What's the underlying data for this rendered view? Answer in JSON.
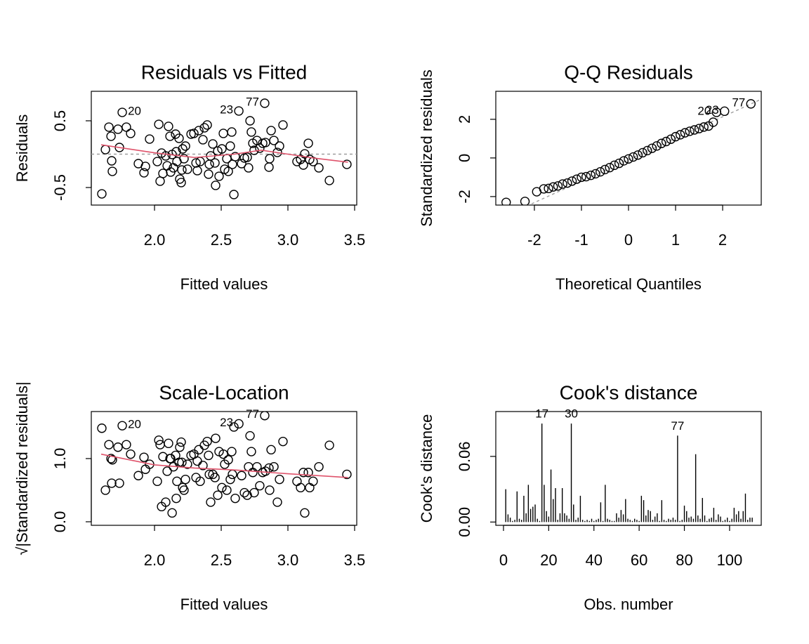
{
  "chart_data": [
    {
      "type": "scatter",
      "title": "Residuals vs Fitted",
      "xlabel": "Fitted values",
      "ylabel": "Residuals",
      "xlim": [
        1.526,
        3.516
      ],
      "ylim": [
        -0.763,
        0.942
      ],
      "xticks": [
        {
          "value": 2,
          "label": "2.0"
        },
        2.5,
        {
          "value": 3,
          "label": "3.0"
        },
        3.5
      ],
      "yticks": [
        -0.5,
        0.5
      ],
      "x": [
        1.605,
        1.632,
        1.658,
        1.674,
        1.679,
        1.684,
        1.726,
        1.737,
        1.758,
        1.789,
        1.821,
        1.879,
        1.921,
        1.932,
        1.963,
        2.021,
        2.032,
        2.042,
        2.053,
        2.063,
        2.084,
        2.095,
        2.105,
        2.116,
        2.121,
        2.132,
        2.142,
        2.158,
        2.163,
        2.168,
        2.184,
        2.189,
        2.2,
        2.205,
        2.211,
        2.221,
        2.232,
        2.247,
        2.274,
        2.295,
        2.311,
        2.321,
        2.332,
        2.342,
        2.363,
        2.374,
        2.395,
        2.405,
        2.411,
        2.421,
        2.437,
        2.453,
        2.458,
        2.474,
        2.484,
        2.505,
        2.516,
        2.526,
        2.542,
        2.553,
        2.568,
        2.579,
        2.584,
        2.595,
        2.605,
        2.632,
        2.653,
        2.674,
        2.695,
        2.705,
        2.716,
        2.726,
        2.737,
        2.747,
        2.768,
        2.789,
        2.811,
        2.826,
        2.832,
        2.858,
        2.863,
        2.874,
        2.895,
        2.921,
        2.937,
        2.963,
        3.068,
        3.095,
        3.116,
        3.126,
        3.153,
        3.163,
        3.189,
        3.232,
        3.311,
        3.442
      ],
      "values": [
        -0.595,
        0.068,
        0.405,
        0.268,
        -0.1,
        -0.258,
        0.374,
        0.1,
        0.626,
        0.405,
        0.311,
        -0.142,
        -0.279,
        -0.184,
        0.226,
        -0.111,
        0.447,
        -0.405,
        0.016,
        -0.289,
        -0.026,
        -0.174,
        0.416,
        0.268,
        -0.268,
        -0.005,
        -0.205,
        0.3,
        0.037,
        -0.111,
        0.237,
        -0.374,
        -0.426,
        -0.237,
        0.079,
        -0.068,
        0.121,
        -0.226,
        0.3,
        0.311,
        -0.132,
        -0.247,
        0.353,
        -0.111,
        0.216,
        0.395,
        0.437,
        -0.3,
        -0.153,
        -0.026,
        0.153,
        -0.132,
        -0.468,
        0.047,
        -0.332,
        0.079,
        0.311,
        -0.226,
        -0.068,
        -0.258,
        0.121,
        0.332,
        -0.153,
        -0.605,
        -0.037,
        0.647,
        -0.142,
        -0.058,
        -0.047,
        -0.205,
        0.5,
        0.332,
        0.163,
        0.058,
        0.205,
        0.089,
        0.163,
        0.763,
        0.174,
        -0.195,
        -0.068,
        0.353,
        0.205,
        0.026,
        0.121,
        0.437,
        -0.111,
        -0.079,
        -0.163,
        0.005,
        0.163,
        -0.079,
        -0.111,
        -0.205,
        -0.395,
        -0.153
      ],
      "point_labels": {
        "8": "20",
        "65": "23",
        "77": "77"
      },
      "smooth": {
        "color": "#DF536B",
        "x": [
          1.6,
          2.0,
          2.3,
          2.6,
          2.8,
          3.0,
          3.2,
          3.45
        ],
        "y": [
          0.14,
          0.02,
          -0.05,
          0.0,
          0.06,
          0.0,
          -0.06,
          -0.12
        ]
      },
      "reference_y": 0,
      "reference_color": "#9E9E9E"
    },
    {
      "type": "scatter",
      "title": "Q-Q Residuals",
      "xlabel": "Theoretical Quantiles",
      "ylabel": "Standardized residuals",
      "xlim": [
        -2.82,
        2.82
      ],
      "ylim": [
        -2.44,
        3.45
      ],
      "xticks": [
        -2,
        -1,
        0,
        1,
        2
      ],
      "yticks": [
        -2,
        0,
        2
      ],
      "x": [
        -2.6,
        -2.2,
        -1.95,
        -1.8,
        -1.7,
        -1.6,
        -1.5,
        -1.4,
        -1.3,
        -1.2,
        -1.1,
        -1.0,
        -0.9,
        -0.8,
        -0.7,
        -0.6,
        -0.5,
        -0.4,
        -0.3,
        -0.2,
        -0.1,
        0,
        0.1,
        0.2,
        0.3,
        0.4,
        0.5,
        0.6,
        0.7,
        0.8,
        0.9,
        1.0,
        1.1,
        1.2,
        1.3,
        1.4,
        1.5,
        1.6,
        1.7,
        1.8,
        1.87,
        2.04,
        2.6
      ],
      "values": [
        -2.3,
        -2.25,
        -1.75,
        -1.6,
        -1.58,
        -1.5,
        -1.45,
        -1.35,
        -1.3,
        -1.2,
        -1.1,
        -1.0,
        -0.97,
        -0.9,
        -0.82,
        -0.72,
        -0.6,
        -0.5,
        -0.38,
        -0.28,
        -0.15,
        -0.05,
        0.05,
        0.15,
        0.27,
        0.38,
        0.5,
        0.62,
        0.75,
        0.85,
        0.97,
        1.1,
        1.2,
        1.3,
        1.38,
        1.45,
        1.52,
        1.6,
        1.65,
        1.85,
        2.36,
        2.42,
        2.8
      ],
      "point_labels": {
        "40": "20",
        "41": "23",
        "42": "77"
      },
      "reference_line": {
        "slope": 1.11,
        "intercept": -0.09
      },
      "reference_color": "#9E9E9E"
    },
    {
      "type": "scatter",
      "title": "Scale-Location",
      "xlabel": "Fitted values",
      "ylabel": "√|Standardized residuals|",
      "xlim": [
        1.526,
        3.516
      ],
      "ylim": [
        -0.056,
        1.744
      ],
      "xticks": [
        {
          "value": 2,
          "label": "2.0"
        },
        2.5,
        {
          "value": 3,
          "label": "3.0"
        },
        3.5
      ],
      "yticks": [
        {
          "value": 0,
          "label": "0.0"
        },
        {
          "value": 1,
          "label": "1.0"
        }
      ],
      "x": [
        1.605,
        1.632,
        1.658,
        1.674,
        1.679,
        1.684,
        1.726,
        1.737,
        1.758,
        1.789,
        1.821,
        1.879,
        1.921,
        1.932,
        1.963,
        2.021,
        2.032,
        2.042,
        2.053,
        2.063,
        2.084,
        2.095,
        2.105,
        2.116,
        2.121,
        2.132,
        2.142,
        2.158,
        2.163,
        2.168,
        2.184,
        2.189,
        2.2,
        2.205,
        2.211,
        2.221,
        2.232,
        2.247,
        2.274,
        2.295,
        2.311,
        2.321,
        2.332,
        2.342,
        2.363,
        2.374,
        2.395,
        2.405,
        2.411,
        2.421,
        2.437,
        2.453,
        2.458,
        2.474,
        2.484,
        2.505,
        2.516,
        2.526,
        2.542,
        2.553,
        2.568,
        2.579,
        2.584,
        2.595,
        2.605,
        2.632,
        2.653,
        2.674,
        2.695,
        2.705,
        2.716,
        2.726,
        2.737,
        2.747,
        2.768,
        2.789,
        2.811,
        2.826,
        2.832,
        2.858,
        2.863,
        2.874,
        2.895,
        2.921,
        2.937,
        2.963,
        3.068,
        3.095,
        3.116,
        3.126,
        3.153,
        3.163,
        3.189,
        3.232,
        3.311,
        3.442
      ],
      "values": [
        1.48,
        0.5,
        1.22,
        1.0,
        0.61,
        0.98,
        1.18,
        0.61,
        1.52,
        1.22,
        1.07,
        0.73,
        1.02,
        0.83,
        0.91,
        0.64,
        1.29,
        1.22,
        0.24,
        1.03,
        0.31,
        0.8,
        1.24,
        1.0,
        1.0,
        0.14,
        0.87,
        1.05,
        0.37,
        0.64,
        0.94,
        1.18,
        1.26,
        0.94,
        0.54,
        0.5,
        0.67,
        0.91,
        1.05,
        1.07,
        0.7,
        0.96,
        1.14,
        0.64,
        0.89,
        1.21,
        1.27,
        1.05,
        0.75,
        0.31,
        0.75,
        0.7,
        1.32,
        0.42,
        1.11,
        0.54,
        1.07,
        0.91,
        0.5,
        0.98,
        0.67,
        1.11,
        0.75,
        1.5,
        0.37,
        1.55,
        0.73,
        0.46,
        0.42,
        0.87,
        1.36,
        1.11,
        0.78,
        0.46,
        0.87,
        0.57,
        0.78,
        1.68,
        0.8,
        0.85,
        0.5,
        1.14,
        0.87,
        0.31,
        0.67,
        1.27,
        0.64,
        0.54,
        0.78,
        0.14,
        0.78,
        0.54,
        0.64,
        0.87,
        1.21,
        0.75
      ],
      "point_labels": {
        "8": "20",
        "65": "23",
        "77": "77"
      },
      "smooth": {
        "color": "#DF536B",
        "x": [
          1.6,
          2.0,
          2.3,
          2.6,
          3.0,
          3.45
        ],
        "y": [
          1.07,
          0.9,
          0.85,
          0.82,
          0.76,
          0.7
        ]
      }
    },
    {
      "type": "bar",
      "title": "Cook's distance",
      "xlabel": "Obs. number",
      "ylabel": "Cook's distance",
      "xlim": [
        -3.4,
        114
      ],
      "ylim": [
        -0.003,
        0.101
      ],
      "xticks": [
        0,
        20,
        40,
        60,
        80,
        100
      ],
      "yticks": [
        {
          "value": 0,
          "label": "0.00"
        },
        0.06
      ],
      "x": [
        1,
        2,
        3,
        4,
        5,
        6,
        7,
        8,
        9,
        10,
        11,
        12,
        13,
        14,
        15,
        16,
        17,
        18,
        19,
        20,
        21,
        22,
        23,
        24,
        25,
        26,
        27,
        28,
        29,
        30,
        31,
        32,
        33,
        34,
        35,
        36,
        37,
        38,
        39,
        40,
        41,
        42,
        43,
        44,
        45,
        46,
        47,
        48,
        49,
        50,
        51,
        52,
        53,
        54,
        55,
        56,
        57,
        58,
        59,
        60,
        61,
        62,
        63,
        64,
        65,
        66,
        67,
        68,
        69,
        70,
        71,
        72,
        73,
        74,
        75,
        76,
        77,
        78,
        79,
        80,
        81,
        82,
        83,
        84,
        85,
        86,
        87,
        88,
        89,
        90,
        91,
        92,
        93,
        94,
        95,
        96,
        97,
        98,
        99,
        100,
        101,
        102,
        103,
        104,
        105,
        106,
        107,
        108,
        109,
        110
      ],
      "values": [
        0.03,
        0.007,
        0.004,
        0.001,
        0.002,
        0.028,
        0.003,
        0.002,
        0.024,
        0.008,
        0.034,
        0.012,
        0.014,
        0.016,
        0.003,
        0.001,
        0.09,
        0.034,
        0.01,
        0.005,
        0.048,
        0.021,
        0.031,
        0.002,
        0.008,
        0.031,
        0.008,
        0.006,
        0.003,
        0.09,
        0.016,
        0.002,
        0.004,
        0.024,
        0.002,
        0.001,
        0.002,
        0.001,
        0.003,
        0.001,
        0.002,
        0.003,
        0.018,
        0.001,
        0.034,
        0.003,
        0.002,
        0.001,
        0.001,
        0.008,
        0.004,
        0.011,
        0.007,
        0.021,
        0.003,
        0.002,
        0.001,
        0.003,
        0.002,
        0.001,
        0.024,
        0.02,
        0.006,
        0.011,
        0.01,
        0.002,
        0.005,
        0.008,
        0.001,
        0.02,
        0.002,
        0.001,
        0.003,
        0.002,
        0.004,
        0.002,
        0.079,
        0.001,
        0.002,
        0.015,
        0.01,
        0.004,
        0.005,
        0.003,
        0.062,
        0.006,
        0.003,
        0.022,
        0.006,
        0.001,
        0.003,
        0.004,
        0.013,
        0.002,
        0.007,
        0.005,
        0.001,
        0.002,
        0.004,
        0.001,
        0.003,
        0.013,
        0.007,
        0.01,
        0.003,
        0.01,
        0.026,
        0.002,
        0.004,
        0.004
      ],
      "labeled_obs": [
        17,
        30,
        77
      ]
    }
  ]
}
